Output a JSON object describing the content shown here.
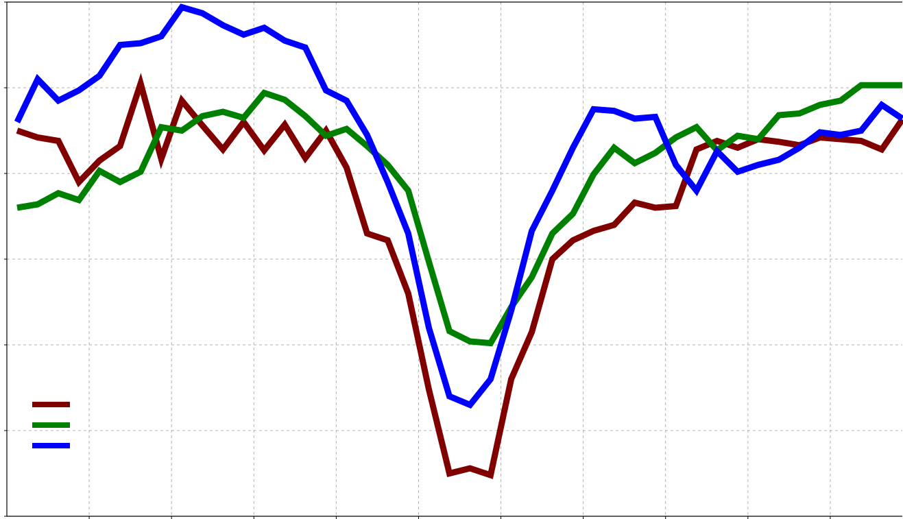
{
  "chart_data": {
    "type": "line",
    "title": "",
    "xlabel": "",
    "ylabel": "",
    "x": [
      0,
      1,
      2,
      3,
      4,
      5,
      6,
      7,
      8,
      9,
      10,
      11,
      12,
      13,
      14,
      15,
      16,
      17,
      18,
      19,
      20,
      21,
      22,
      23,
      24,
      25,
      26,
      27,
      28,
      29,
      30,
      31,
      32,
      33,
      34,
      35,
      36,
      37,
      38,
      39,
      40,
      41,
      42,
      43
    ],
    "xlim": [
      -0.5,
      43
    ],
    "ylim": [
      0,
      6
    ],
    "x_grid_at": [
      3.5,
      7.5,
      11.5,
      15.5,
      19.5,
      23.5,
      27.5,
      31.5,
      35.5,
      39.5
    ],
    "y_grid_at": [
      1,
      2,
      3,
      4,
      5
    ],
    "grid": true,
    "legend_position": "lower-left",
    "series": [
      {
        "color": "#800000",
        "values": [
          4.5,
          4.42,
          4.38,
          3.9,
          4.15,
          4.32,
          5.05,
          4.17,
          4.85,
          4.56,
          4.28,
          4.6,
          4.27,
          4.57,
          4.18,
          4.5,
          4.07,
          3.3,
          3.22,
          2.6,
          1.48,
          0.5,
          0.56,
          0.48,
          1.6,
          2.15,
          3.0,
          3.22,
          3.33,
          3.4,
          3.66,
          3.6,
          3.62,
          4.28,
          4.38,
          4.3,
          4.4,
          4.37,
          4.33,
          4.42,
          4.4,
          4.38,
          4.28,
          4.63
        ]
      },
      {
        "color": "#008000",
        "values": [
          3.6,
          3.64,
          3.77,
          3.69,
          4.03,
          3.9,
          4.02,
          4.54,
          4.5,
          4.67,
          4.72,
          4.65,
          4.94,
          4.86,
          4.67,
          4.44,
          4.52,
          4.32,
          4.1,
          3.8,
          2.97,
          2.16,
          2.04,
          2.02,
          2.44,
          2.79,
          3.3,
          3.53,
          3.99,
          4.3,
          4.12,
          4.24,
          4.42,
          4.54,
          4.27,
          4.44,
          4.4,
          4.68,
          4.7,
          4.8,
          4.85,
          5.03,
          5.03,
          5.03
        ]
      },
      {
        "color": "#0000ff",
        "values": [
          4.6,
          5.1,
          4.85,
          4.97,
          5.14,
          5.5,
          5.52,
          5.6,
          5.94,
          5.87,
          5.73,
          5.62,
          5.7,
          5.55,
          5.47,
          4.97,
          4.85,
          4.45,
          3.9,
          3.3,
          2.2,
          1.4,
          1.3,
          1.6,
          2.4,
          3.33,
          3.8,
          4.3,
          4.75,
          4.73,
          4.64,
          4.66,
          4.1,
          3.8,
          4.26,
          4.02,
          4.1,
          4.16,
          4.3,
          4.48,
          4.45,
          4.5,
          4.8,
          4.64
        ]
      }
    ]
  }
}
